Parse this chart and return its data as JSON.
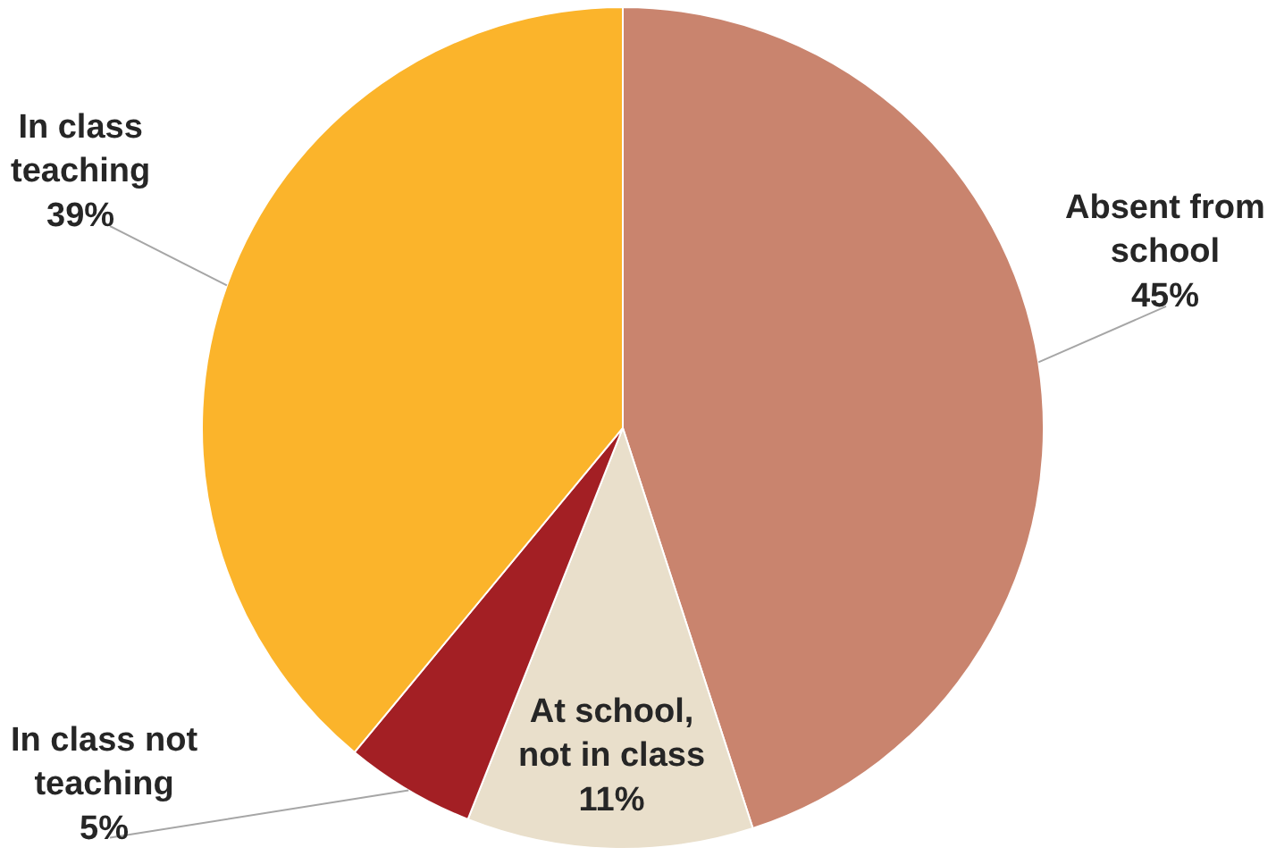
{
  "chart_data": {
    "type": "pie",
    "categories": [
      "Absent from school",
      "At school, not in class",
      "In class not teaching",
      "In class teaching"
    ],
    "values": [
      45,
      11,
      5,
      39
    ],
    "value_labels": [
      "45%",
      "11%",
      "5%",
      "39%"
    ],
    "colors": [
      "#c9846e",
      "#e9dfcb",
      "#a31f24",
      "#fbb42b"
    ],
    "legend": false
  }
}
